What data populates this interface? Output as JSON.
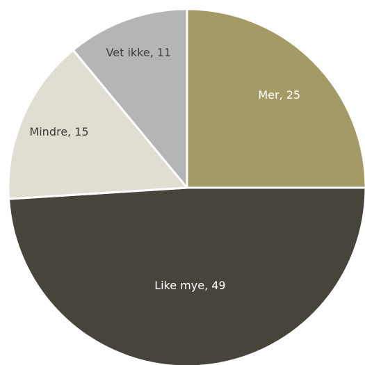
{
  "chart_data": {
    "type": "pie",
    "slices": [
      {
        "label": "Mer",
        "value": 25,
        "color": "#a39a65",
        "label_color": "#ffffff"
      },
      {
        "label": "Like mye",
        "value": 49,
        "color": "#47443b",
        "label_color": "#ffffff"
      },
      {
        "label": "Mindre",
        "value": 15,
        "color": "#e0ded2",
        "label_color": "#3f3c35"
      },
      {
        "label": "Vet ikke",
        "value": 11,
        "color": "#b5b5b5",
        "label_color": "#3f3c35"
      }
    ],
    "start": "12 o'clock",
    "direction": "clockwise",
    "legend": "none",
    "separator_color": "#ffffff"
  }
}
